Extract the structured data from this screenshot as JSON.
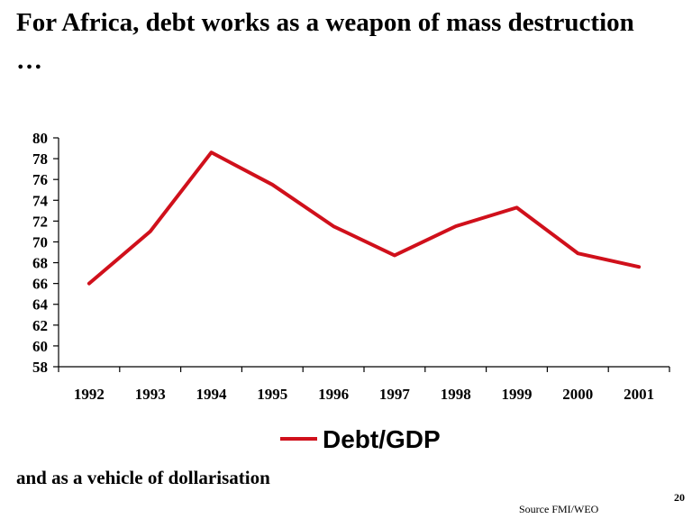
{
  "slide": {
    "title": "For Africa, debt works as a weapon of  mass destruction …",
    "subtitle": "and as a vehicle of dollarisation",
    "page_number": "20",
    "source": "Source FMI/WEO"
  },
  "chart_data": {
    "type": "line",
    "title": "",
    "xlabel": "",
    "ylabel": "",
    "categories": [
      "1992",
      "1993",
      "1994",
      "1995",
      "1996",
      "1997",
      "1998",
      "1999",
      "2000",
      "2001"
    ],
    "ylim": [
      58,
      80
    ],
    "yticks": [
      80,
      78,
      76,
      74,
      72,
      70,
      68,
      66,
      64,
      62,
      60,
      58
    ],
    "series": [
      {
        "name": "Debt/GDP",
        "color": "#D0101B",
        "values": [
          66.0,
          71.0,
          78.6,
          75.5,
          71.5,
          68.7,
          71.5,
          73.3,
          68.9,
          67.6
        ]
      }
    ],
    "grid": false,
    "legend_position": "bottom"
  }
}
